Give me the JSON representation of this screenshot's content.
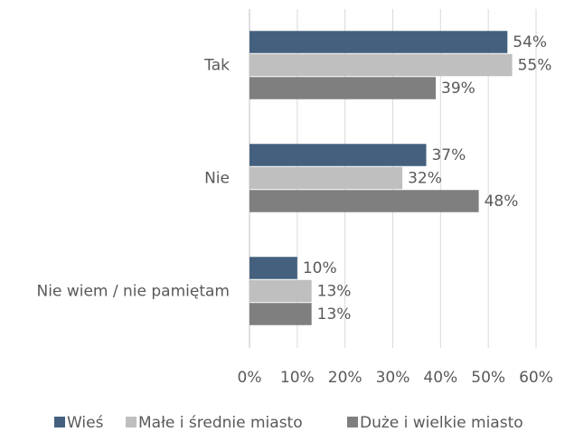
{
  "chart_data": {
    "type": "bar",
    "orientation": "horizontal",
    "categories": [
      "Tak",
      "Nie",
      "Nie wiem / nie pamiętam"
    ],
    "series": [
      {
        "name": "Wieś",
        "color": "#44607e",
        "values": [
          54,
          37,
          10
        ],
        "value_labels": [
          "54%",
          "37%",
          "10%"
        ]
      },
      {
        "name": "Małe i średnie miasto",
        "color": "#bfbfbf",
        "values": [
          55,
          32,
          13
        ],
        "value_labels": [
          "55%",
          "32%",
          "13%"
        ]
      },
      {
        "name": "Duże i wielkie miasto",
        "color": "#7f7f7f",
        "values": [
          39,
          48,
          13
        ],
        "value_labels": [
          "39%",
          "48%",
          "13%"
        ]
      }
    ],
    "xlim": [
      0,
      60
    ],
    "xticks": [
      {
        "value": 0,
        "label": "0%"
      },
      {
        "value": 10,
        "label": "10%"
      },
      {
        "value": 20,
        "label": "20%"
      },
      {
        "value": 30,
        "label": "30%"
      },
      {
        "value": 40,
        "label": "40%"
      },
      {
        "value": 50,
        "label": "50%"
      },
      {
        "value": 60,
        "label": "60%"
      }
    ],
    "grid": true,
    "legend": "bottom"
  }
}
